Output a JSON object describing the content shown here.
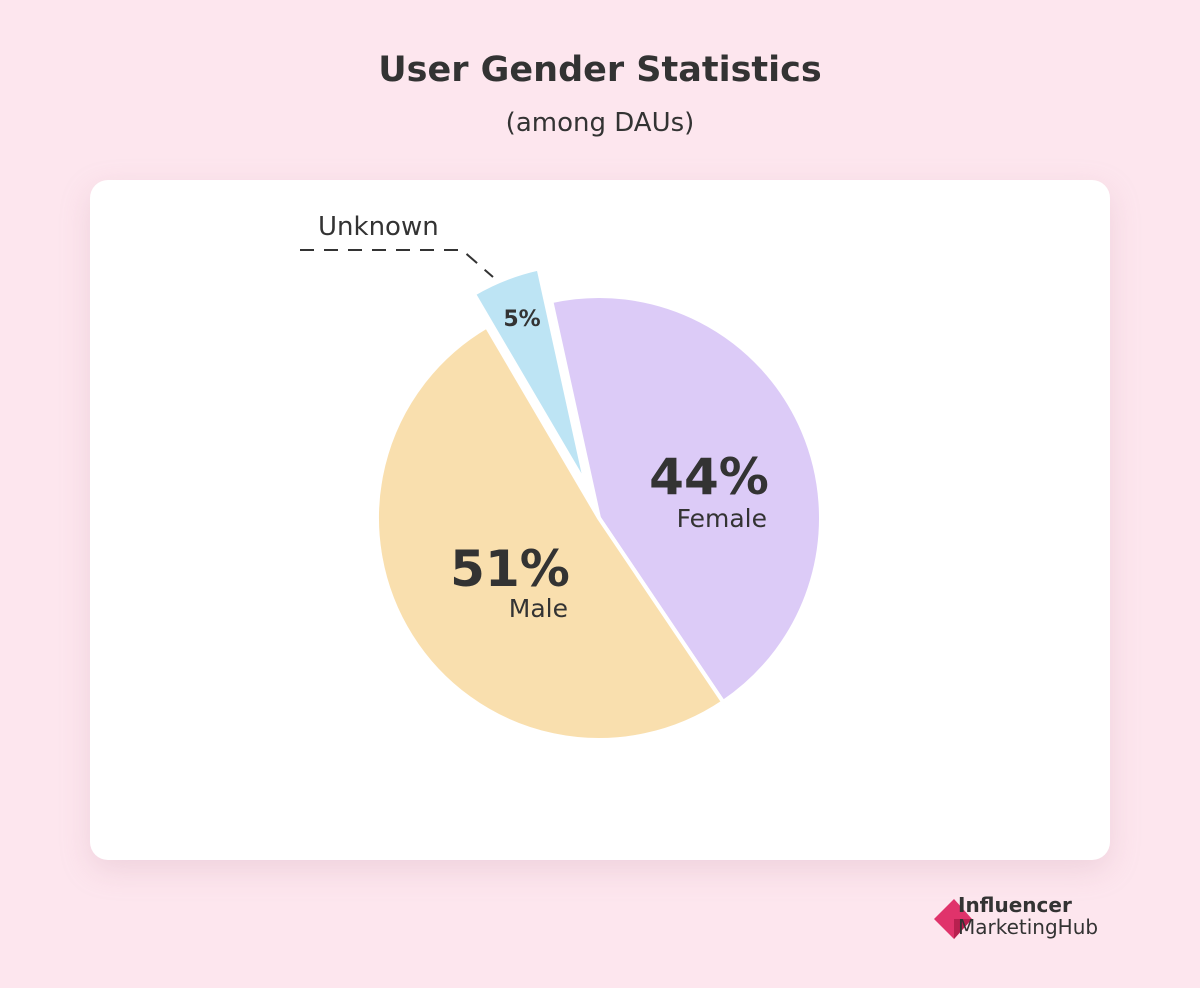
{
  "chart_data": {
    "type": "pie",
    "title": "User Gender Statistics",
    "subtitle": "(among DAUs)",
    "slices": [
      {
        "label": "Female",
        "value": 44,
        "value_label": "44%",
        "color": "#dccbf7"
      },
      {
        "label": "Male",
        "value": 51,
        "value_label": "51%",
        "color": "#f9dfae"
      },
      {
        "label": "Unknown",
        "value": 5,
        "value_label": "5%",
        "color": "#bde4f4",
        "exploded": true
      }
    ]
  },
  "brand": {
    "line1": "Influencer",
    "line2": "MarketingHub",
    "color": "#e0336b"
  },
  "colors": {
    "background": "#fde6ee",
    "text": "#333333"
  }
}
